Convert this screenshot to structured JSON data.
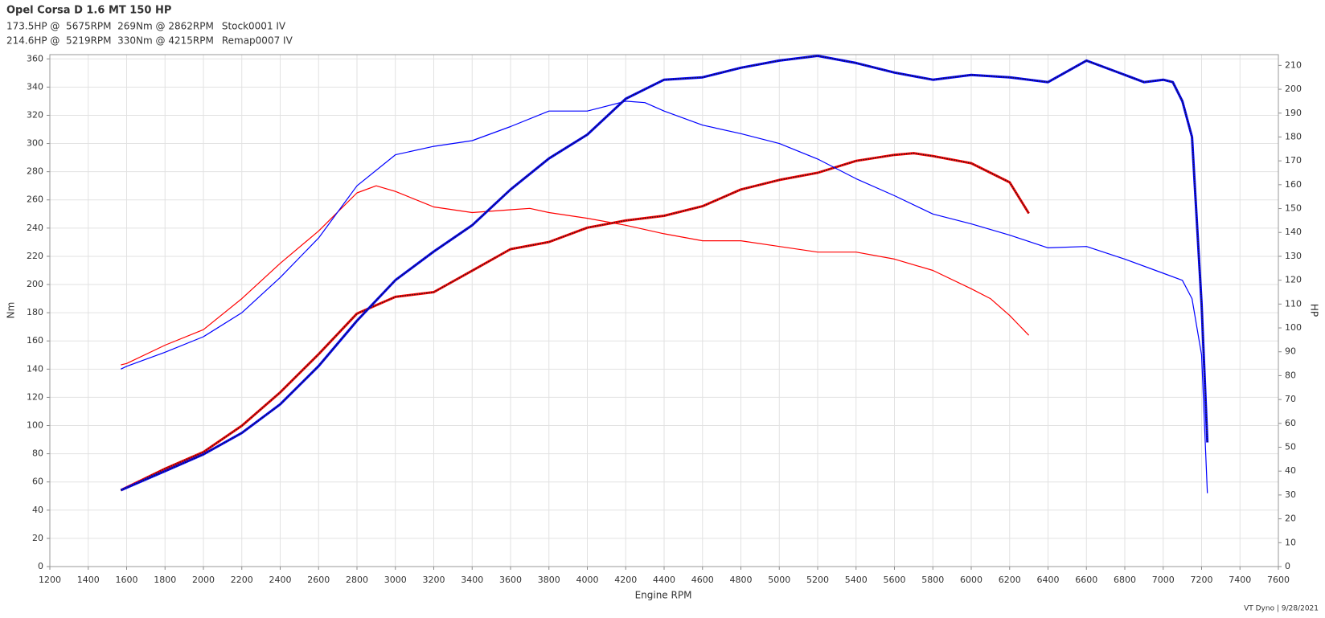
{
  "chart_data": {
    "type": "line",
    "title": "Opel Corsa D 1.6 MT 150 HP",
    "legend_lines": [
      "173.5HP @  5675RPM  269Nm @ 2862RPM",
      "214.6HP @  5219RPM  330Nm @ 4215RPM"
    ],
    "x_label": "Engine RPM",
    "y_label": "Nm",
    "y2_label": "HP",
    "footer": "VT Dyno | 9/28/2021",
    "xlim": [
      1200,
      7600
    ],
    "xticks": [
      1200,
      1400,
      1600,
      1800,
      2000,
      2200,
      2400,
      2600,
      2800,
      3000,
      3200,
      3400,
      3600,
      3800,
      4000,
      4200,
      4400,
      4600,
      4800,
      5000,
      5200,
      5400,
      5600,
      5800,
      6000,
      6200,
      6400,
      6600,
      6800,
      7000,
      7200,
      7400,
      7600
    ],
    "ylim": [
      0,
      363
    ],
    "yticks": [
      0,
      20,
      40,
      60,
      80,
      100,
      120,
      140,
      160,
      180,
      200,
      220,
      240,
      260,
      280,
      300,
      320,
      340,
      360
    ],
    "y2lim": [
      0,
      214.5
    ],
    "y2ticks": [
      0,
      10,
      20,
      30,
      40,
      50,
      60,
      70,
      80,
      90,
      100,
      110,
      120,
      130,
      140,
      150,
      160,
      170,
      180,
      190,
      200,
      210
    ],
    "grid": true,
    "series": [
      {
        "name": "Stock0001 IV",
        "color": "#ff0000",
        "legend_line": 0,
        "x": [
          1570,
          1600,
          1800,
          2000,
          2200,
          2400,
          2600,
          2800,
          2900,
          3000,
          3200,
          3400,
          3600,
          3700,
          3800,
          4000,
          4200,
          4400,
          4600,
          4800,
          5000,
          5200,
          5400,
          5600,
          5800,
          6000,
          6100,
          6200,
          6300
        ],
        "values": [
          143,
          144,
          157,
          168,
          190,
          215,
          238,
          265,
          270,
          266,
          255,
          251,
          253,
          254,
          251,
          247,
          242,
          236,
          231,
          231,
          227,
          223,
          223,
          218,
          210,
          197,
          190,
          178,
          164
        ]
      },
      {
        "color": "#ff0000",
        "axis": "y2",
        "style": "dotted",
        "x": [
          1570,
          1800,
          2000,
          2200,
          2400,
          2600,
          2800,
          3000,
          3200,
          3400,
          3600,
          3800,
          4000,
          4200,
          4400,
          4600,
          4800,
          5000,
          5200,
          5400,
          5600,
          5700,
          5800,
          6000,
          6200,
          6300
        ],
        "values": [
          32,
          41,
          48,
          59,
          73,
          89,
          106,
          113,
          115,
          124,
          133,
          136,
          142,
          145,
          147,
          151,
          158,
          162,
          165,
          170,
          172.5,
          173.2,
          172,
          169,
          161,
          148
        ]
      },
      {
        "name": "Remap0007 IV",
        "color": "#0000ff",
        "legend_line": 1,
        "x": [
          1570,
          1600,
          1800,
          2000,
          2200,
          2400,
          2600,
          2800,
          3000,
          3200,
          3400,
          3600,
          3800,
          4000,
          4200,
          4300,
          4400,
          4600,
          4800,
          5000,
          5200,
          5400,
          5600,
          5800,
          6000,
          6200,
          6400,
          6600,
          6800,
          7000,
          7100,
          7150,
          7200,
          7230
        ],
        "values": [
          140,
          142,
          152,
          163,
          180,
          205,
          233,
          270,
          292,
          298,
          302,
          312,
          323,
          323,
          330,
          329,
          323,
          313,
          307,
          300,
          289,
          275,
          263,
          250,
          243,
          235,
          226,
          227,
          218,
          208,
          203,
          190,
          150,
          52
        ]
      },
      {
        "color": "#0000ff",
        "axis": "y2",
        "style": "dotted",
        "x": [
          1570,
          1800,
          2000,
          2200,
          2400,
          2600,
          2800,
          3000,
          3200,
          3400,
          3600,
          3800,
          4000,
          4200,
          4400,
          4600,
          4800,
          5000,
          5200,
          5400,
          5600,
          5800,
          6000,
          6200,
          6400,
          6600,
          6800,
          6900,
          7000,
          7050,
          7100,
          7150,
          7200,
          7230
        ],
        "values": [
          32,
          40,
          47,
          56,
          68,
          84,
          103,
          120,
          132,
          143,
          158,
          171,
          181,
          196,
          204,
          205,
          209,
          212,
          214,
          211,
          207,
          204,
          206,
          205,
          203,
          212,
          206,
          203,
          204,
          203,
          195,
          180,
          110,
          52
        ]
      }
    ]
  }
}
